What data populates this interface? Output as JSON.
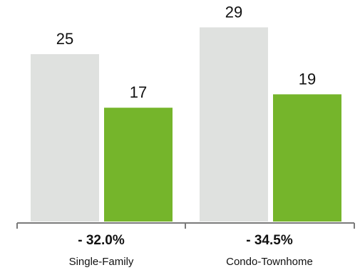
{
  "chart_data": {
    "type": "bar",
    "categories": [
      "Single-Family",
      "Condo-Townhome"
    ],
    "series": [
      {
        "values": [
          25,
          29
        ],
        "color": "#dfe1df"
      },
      {
        "values": [
          17,
          19
        ],
        "color": "#75b52b"
      }
    ],
    "change_labels": [
      "- 32.0%",
      "- 34.5%"
    ],
    "ylim": [
      0,
      30
    ],
    "axis_color": "#7a7a7a",
    "grid": false
  }
}
